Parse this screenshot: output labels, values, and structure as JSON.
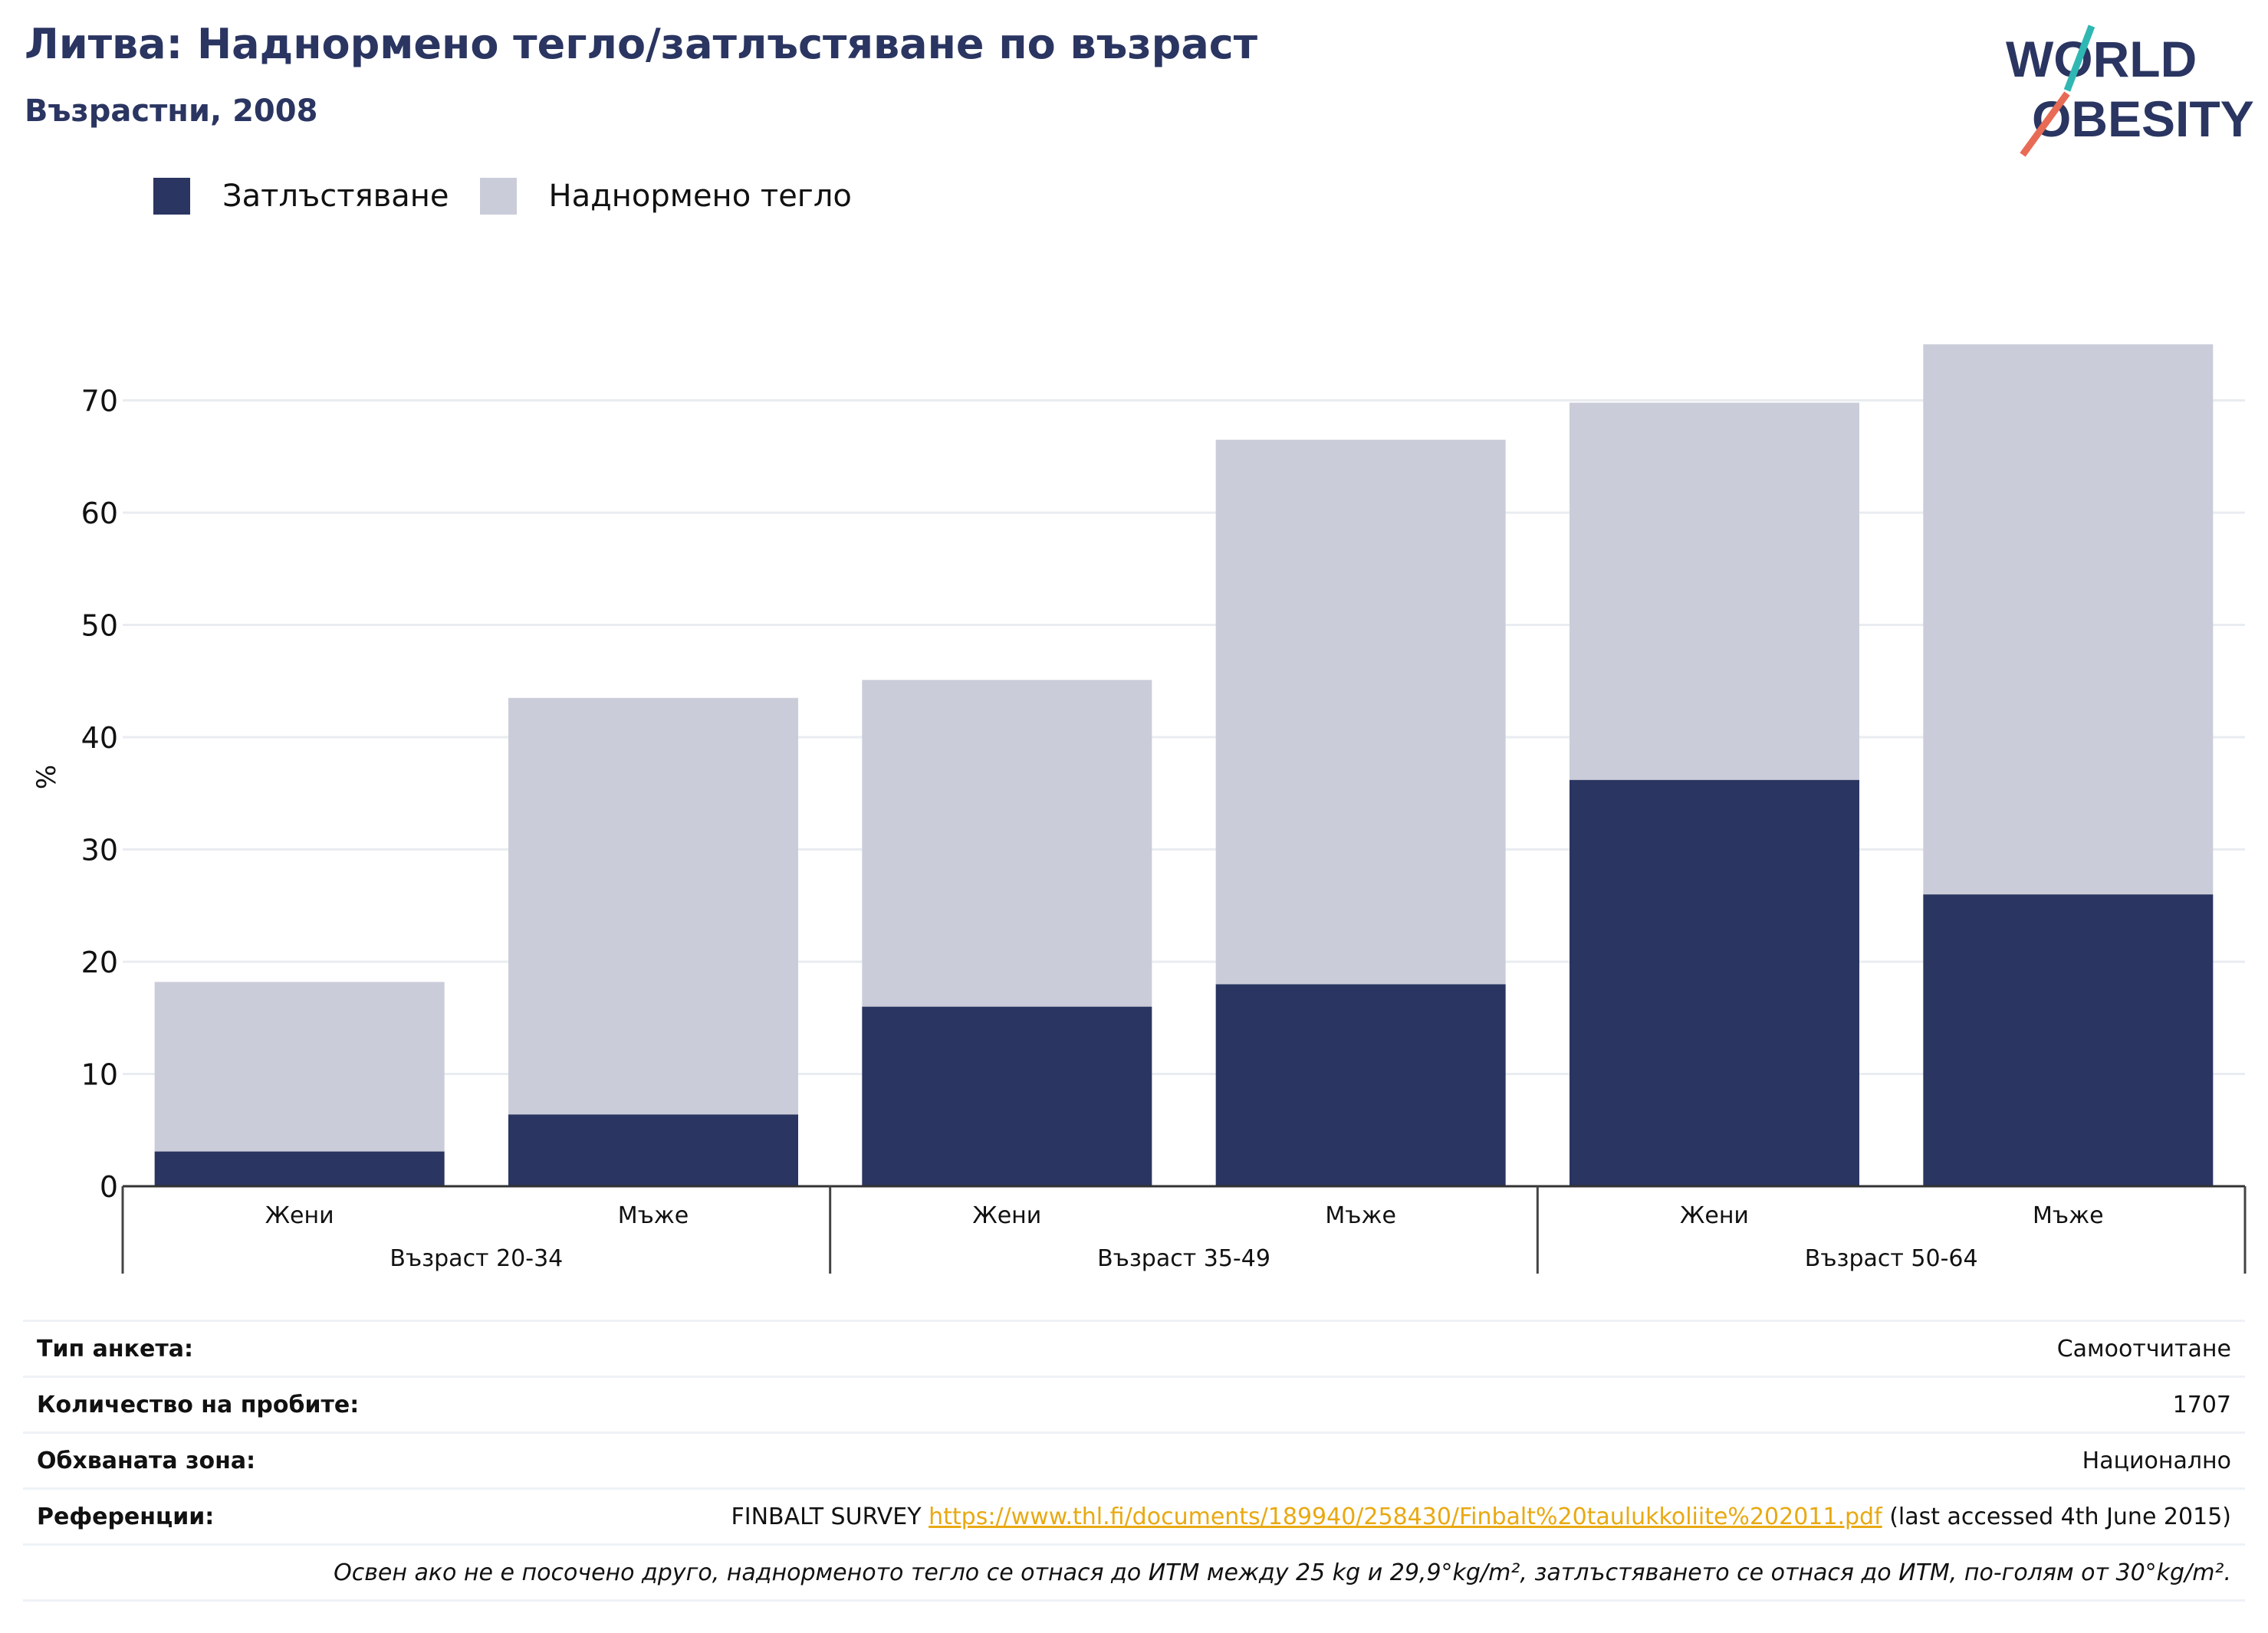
{
  "header": {
    "title": "Литва: Наднормено тегло/затлъстяване по възраст",
    "subtitle": "Възрастни, 2008",
    "logo_line1": "WORLD",
    "logo_line2": "OBESITY"
  },
  "legend": [
    {
      "label": "Затлъстяване",
      "color": "#2a3561"
    },
    {
      "label": "Наднормено тегло",
      "color": "#cacdd9"
    }
  ],
  "chart_data": {
    "type": "bar",
    "stacked": true,
    "ylabel": "%",
    "ylim": [
      0,
      77
    ],
    "yticks": [
      0,
      10,
      20,
      30,
      40,
      50,
      60,
      70
    ],
    "grid": true,
    "legend_position": "top-left",
    "categories": [
      "Жени",
      "Мъже",
      "Жени",
      "Мъже",
      "Жени",
      "Мъже"
    ],
    "groups": [
      {
        "label": "Възраст 20-34",
        "categories": [
          "Жени",
          "Мъже"
        ]
      },
      {
        "label": "Възраст 35-49",
        "categories": [
          "Жени",
          "Мъже"
        ]
      },
      {
        "label": "Възраст 50-64",
        "categories": [
          "Жени",
          "Мъже"
        ]
      }
    ],
    "series": [
      {
        "name": "Затлъстяване",
        "color": "#2a3561",
        "values": [
          3.1,
          6.4,
          16.0,
          18.0,
          36.2,
          26.0
        ]
      },
      {
        "name": "Наднормено тегло",
        "color": "#cacdd9",
        "values": [
          15.1,
          37.1,
          29.1,
          48.5,
          33.6,
          49.0
        ]
      }
    ]
  },
  "info": {
    "survey_type_label": "Тип анкета:",
    "survey_type_value": "Самоотчитане",
    "sample_size_label": "Количество на пробите:",
    "sample_size_value": "1707",
    "area_label": "Обхваната зона:",
    "area_value": "Национално",
    "references_label": "Референции:",
    "references_prefix": "FINBALT SURVEY ",
    "references_link": "https://www.thl.fi/documents/189940/258430/Finbalt%20taulukkoliite%202011.pdf",
    "references_suffix": " (last accessed 4th June 2015)",
    "note": "Освен ако не е посочено друго, наднорменото тегло се отнася до ИТМ между 25 kg и 29,9°kg/m², затлъстяването се отнася до ИТМ, по-голям от 30°kg/m²."
  }
}
